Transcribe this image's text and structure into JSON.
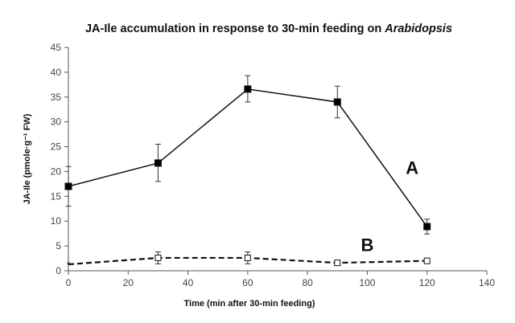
{
  "chart_data": {
    "type": "line",
    "title": "JA-Ile accumulation in response to 30-min feeding on",
    "title_italic": "Arabidopsis",
    "xlabel": "Time (min after 30-min feeding)",
    "ylabel": "JA-Ile (pmole·g⁻¹ FW)",
    "xlim": [
      0,
      140
    ],
    "ylim": [
      0,
      45
    ],
    "xticks": [
      0,
      20,
      40,
      60,
      80,
      100,
      120,
      140
    ],
    "yticks": [
      0,
      5,
      10,
      15,
      20,
      25,
      30,
      35,
      40,
      45
    ],
    "grid": false,
    "legend": "none",
    "series": [
      {
        "name": "A",
        "marker": "filled-square",
        "line": "solid",
        "x": [
          0,
          30,
          60,
          90,
          120
        ],
        "values": [
          17.0,
          21.7,
          36.6,
          34.0,
          8.9
        ],
        "err_low": [
          13.0,
          18.0,
          34.0,
          30.8,
          7.4
        ],
        "err_high": [
          21.0,
          25.5,
          39.3,
          37.2,
          10.4
        ],
        "label_at": [
          115,
          19.5
        ]
      },
      {
        "name": "B",
        "marker": "open-square",
        "line": "dashed",
        "x": [
          0,
          30,
          60,
          90,
          120
        ],
        "values": [
          1.3,
          2.6,
          2.6,
          1.6,
          2.0
        ],
        "err_low": [
          1.3,
          1.4,
          1.4,
          1.6,
          2.0
        ],
        "err_high": [
          1.3,
          3.8,
          3.8,
          1.6,
          2.0
        ],
        "label_at": [
          100,
          4.0
        ]
      }
    ]
  }
}
